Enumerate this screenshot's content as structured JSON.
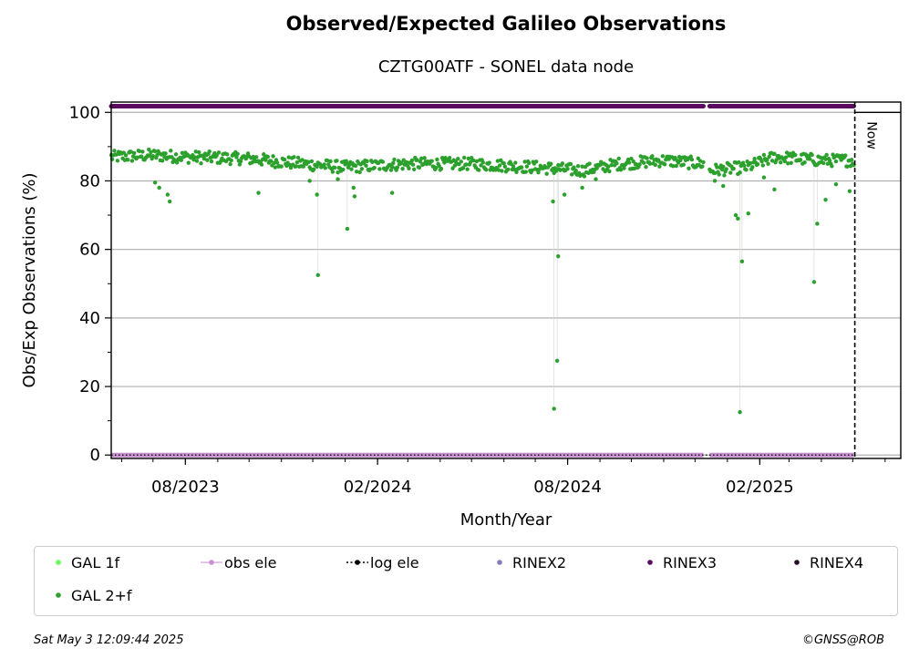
{
  "title": "Observed/Expected Galileo Observations",
  "subtitle": "CZTG00ATF - SONEL data node",
  "footer": {
    "timestamp": "Sat May  3 12:09:44 2025",
    "credit": "©GNSS@ROB"
  },
  "colors": {
    "gal_1f": "#66ff55",
    "gal_2f": "#2ca02c",
    "obs_ele": "#c88fd0",
    "log_ele": "#000000",
    "rinex2": "#8878c0",
    "rinex3": "#5a0a5f",
    "rinex4": "#2a0a2a",
    "grid": "#b0b0b0"
  },
  "legend": [
    {
      "key": "gal_1f",
      "label": "GAL 1f",
      "style": "dot"
    },
    {
      "key": "obs_ele",
      "label": "obs ele",
      "style": "line-dot"
    },
    {
      "key": "log_ele",
      "label": "log ele",
      "style": "dotted-dot"
    },
    {
      "key": "rinex2",
      "label": "RINEX2",
      "style": "dot"
    },
    {
      "key": "rinex3",
      "label": "RINEX3",
      "style": "dot"
    },
    {
      "key": "rinex4",
      "label": "RINEX4",
      "style": "dot"
    },
    {
      "key": "gal_2f",
      "label": "GAL 2+f",
      "style": "dot"
    }
  ],
  "chart_data": {
    "type": "scatter",
    "title": "Observed/Expected Galileo Observations",
    "subtitle": "CZTG00ATF - SONEL data node",
    "xlabel": "Month/Year",
    "ylabel": "Obs/Exp Observations (%)",
    "xlim": [
      "2023-05-22",
      "2025-06-16"
    ],
    "ylim": [
      -1,
      103
    ],
    "x_ticks": [
      {
        "date": "2023-08-01",
        "label": "08/2023"
      },
      {
        "date": "2024-02-01",
        "label": "02/2024"
      },
      {
        "date": "2024-08-01",
        "label": "08/2024"
      },
      {
        "date": "2025-02-01",
        "label": "02/2025"
      }
    ],
    "y_ticks": [
      0,
      20,
      40,
      60,
      80,
      100
    ],
    "grid": "horizontal",
    "now": {
      "date": "2025-05-03",
      "label": "Now"
    },
    "data_gaps": [
      {
        "start": "2024-12-10",
        "end": "2024-12-14"
      }
    ],
    "series": [
      {
        "name": "GAL 2+f",
        "baseline": [
          [
            "2023-05-22",
            87
          ],
          [
            "2023-07-01",
            87.5
          ],
          [
            "2023-08-01",
            87
          ],
          [
            "2023-10-01",
            86.5
          ],
          [
            "2023-11-20",
            85
          ],
          [
            "2024-01-01",
            84
          ],
          [
            "2024-03-01",
            85
          ],
          [
            "2024-05-01",
            85
          ],
          [
            "2024-07-01",
            84
          ],
          [
            "2024-08-15",
            83
          ],
          [
            "2024-09-20",
            85
          ],
          [
            "2024-11-01",
            86
          ],
          [
            "2024-12-09",
            85
          ],
          [
            "2024-12-15",
            83
          ],
          [
            "2025-01-20",
            84
          ],
          [
            "2025-02-15",
            87
          ],
          [
            "2025-04-01",
            86
          ],
          [
            "2025-05-02",
            86
          ]
        ],
        "outliers": [
          [
            "2023-07-03",
            79.5
          ],
          [
            "2023-07-07",
            78
          ],
          [
            "2023-07-15",
            76
          ],
          [
            "2023-07-17",
            74
          ],
          [
            "2023-10-10",
            76.5
          ],
          [
            "2023-11-28",
            80
          ],
          [
            "2023-12-05",
            76
          ],
          [
            "2023-12-06",
            52.5
          ],
          [
            "2023-12-25",
            80.5
          ],
          [
            "2024-01-03",
            66
          ],
          [
            "2024-01-09",
            78
          ],
          [
            "2024-01-10",
            75.5
          ],
          [
            "2024-02-15",
            76.5
          ],
          [
            "2024-07-18",
            74
          ],
          [
            "2024-07-19",
            13.5
          ],
          [
            "2024-07-22",
            27.5
          ],
          [
            "2024-07-23",
            58
          ],
          [
            "2024-07-29",
            76
          ],
          [
            "2024-08-15",
            78
          ],
          [
            "2024-08-28",
            80.5
          ],
          [
            "2024-12-20",
            80
          ],
          [
            "2024-12-28",
            78.5
          ],
          [
            "2025-01-09",
            70
          ],
          [
            "2025-01-11",
            69
          ],
          [
            "2025-01-13",
            12.5
          ],
          [
            "2025-01-15",
            56.5
          ],
          [
            "2025-01-21",
            70.5
          ],
          [
            "2025-02-05",
            81
          ],
          [
            "2025-02-15",
            77.5
          ],
          [
            "2025-03-25",
            50.5
          ],
          [
            "2025-03-28",
            67.5
          ],
          [
            "2025-04-05",
            74.5
          ],
          [
            "2025-04-15",
            79
          ],
          [
            "2025-04-28",
            77
          ]
        ]
      },
      {
        "name": "RINEX3",
        "y": 101.8,
        "ranges": [
          [
            "2023-05-22",
            "2024-12-09"
          ],
          [
            "2024-12-15",
            "2025-05-02"
          ]
        ]
      },
      {
        "name": "obs ele",
        "y": 0,
        "ranges": [
          [
            "2023-05-22",
            "2024-12-09"
          ],
          [
            "2024-12-15",
            "2025-05-02"
          ]
        ]
      },
      {
        "name": "log ele",
        "y": 0,
        "ranges": [
          [
            "2023-05-22",
            "2025-05-02"
          ]
        ]
      }
    ]
  }
}
